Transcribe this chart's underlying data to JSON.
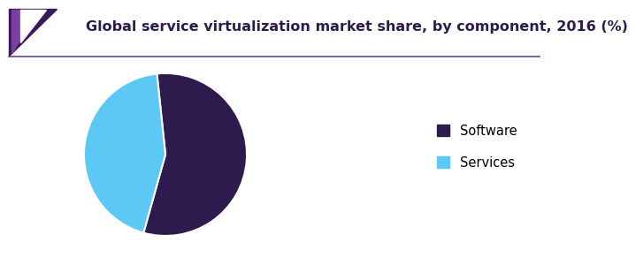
{
  "title": "Global service virtualization market share, by component, 2016 (%)",
  "slices": [
    56.0,
    44.0
  ],
  "labels": [
    "Software",
    "Services"
  ],
  "colors": [
    "#2d1b4e",
    "#5bc8f5"
  ],
  "startangle": 96,
  "legend_labels": [
    "Software",
    "Services"
  ],
  "title_fontsize": 11.5,
  "title_color": "#2d1b4e",
  "background_color": "#ffffff",
  "header_line_color": "#6a3d9a",
  "legend_marker_colors": [
    "#2d1b4e",
    "#5bc8f5"
  ],
  "triangle_color": "#5b2d8e",
  "triangle_dark_color": "#3a1a5c"
}
